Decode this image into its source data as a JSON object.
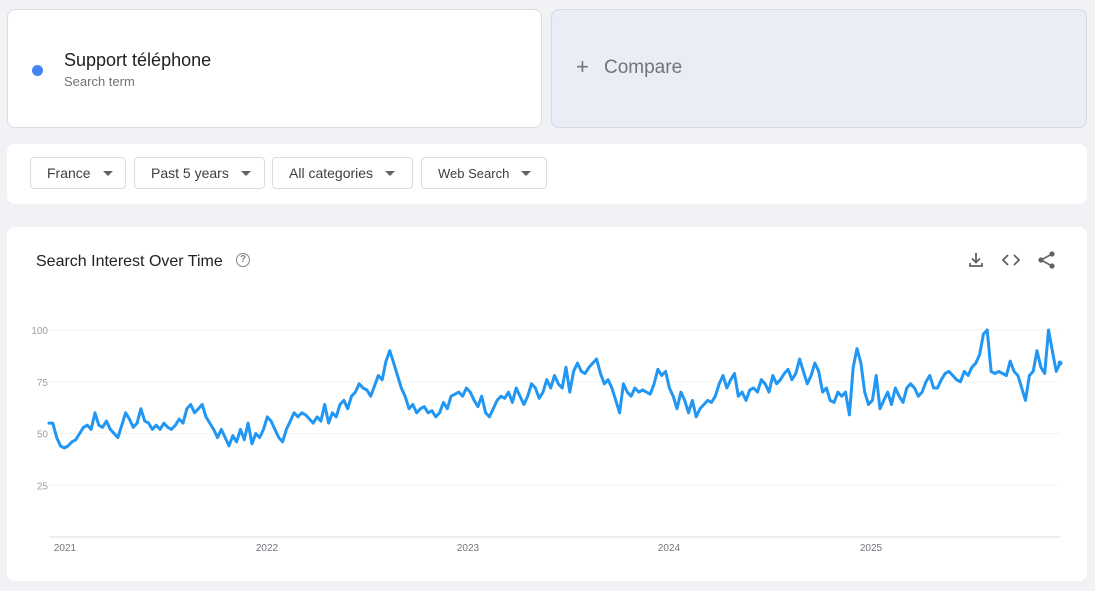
{
  "search_term": {
    "name": "Support téléphone",
    "subtitle": "Search term",
    "color": "#4285f4"
  },
  "compare": {
    "plus": "+",
    "label": "Compare"
  },
  "filters": {
    "region": "France",
    "time": "Past 5 years",
    "category": "All categories",
    "property": "Web Search"
  },
  "chart_panel": {
    "title": "Search Interest Over Time",
    "help_icon": "help-circle-icon",
    "tools": [
      "download-icon",
      "embed-code-icon",
      "share-icon"
    ]
  },
  "chart_data": {
    "type": "line",
    "title": "Search Interest Over Time",
    "xlabel": "",
    "ylabel": "",
    "ylim": [
      0,
      100
    ],
    "yticks": [
      25,
      50,
      75,
      100
    ],
    "xticks": [
      "2021",
      "2022",
      "2023",
      "2024",
      "2025"
    ],
    "grid": true,
    "color": "#2196f3",
    "x_start": "2021-01-01",
    "x_end": "2025-12-31",
    "series": [
      {
        "values": [
          55,
          55,
          48,
          44,
          43,
          44,
          46,
          47,
          50,
          53,
          54,
          52,
          60,
          54,
          53,
          56,
          52,
          50,
          48,
          54,
          60,
          57,
          53,
          55,
          62,
          56,
          55,
          52,
          54,
          52,
          55,
          53,
          52,
          54,
          57,
          55,
          62,
          64,
          60,
          62,
          64,
          58,
          55,
          52,
          48,
          52,
          48,
          44,
          49,
          46,
          52,
          47,
          55,
          45,
          50,
          48,
          52,
          58,
          56,
          52,
          48,
          46,
          52,
          56,
          60,
          58,
          60,
          59,
          57,
          55,
          58,
          56,
          64,
          55,
          60,
          58,
          64,
          66,
          62,
          68,
          70,
          74,
          72,
          71,
          68,
          73,
          78,
          76,
          85,
          90,
          84,
          78,
          72,
          68,
          62,
          64,
          60,
          62,
          63,
          60,
          61,
          58,
          60,
          65,
          62,
          68,
          69,
          70,
          68,
          72,
          70,
          66,
          63,
          68,
          60,
          58,
          62,
          66,
          68,
          67,
          70,
          65,
          72,
          68,
          64,
          68,
          74,
          72,
          67,
          70,
          76,
          72,
          78,
          74,
          72,
          82,
          70,
          80,
          84,
          80,
          79,
          82,
          84,
          86,
          79,
          74,
          76,
          72,
          66,
          60,
          74,
          70,
          68,
          72,
          70,
          71,
          70,
          69,
          74,
          81,
          78,
          80,
          72,
          68,
          62,
          70,
          66,
          60,
          66,
          58,
          62,
          64,
          66,
          65,
          68,
          74,
          78,
          72,
          76,
          79,
          68,
          70,
          66,
          71,
          72,
          70,
          76,
          74,
          70,
          78,
          74,
          76,
          79,
          81,
          76,
          79,
          86,
          80,
          74,
          78,
          84,
          80,
          70,
          72,
          66,
          65,
          70,
          68,
          70,
          59,
          82,
          91,
          84,
          70,
          64,
          66,
          78,
          62,
          66,
          70,
          64,
          72,
          68,
          65,
          72,
          74,
          72,
          68,
          70,
          75,
          78,
          72,
          72,
          76,
          79,
          80,
          78,
          76,
          75,
          80,
          78,
          82,
          84,
          88,
          98,
          100,
          80,
          79,
          80,
          79,
          78,
          85,
          80,
          78,
          72,
          66,
          78,
          80,
          90,
          82,
          79,
          100,
          90,
          80,
          84
        ]
      }
    ]
  }
}
